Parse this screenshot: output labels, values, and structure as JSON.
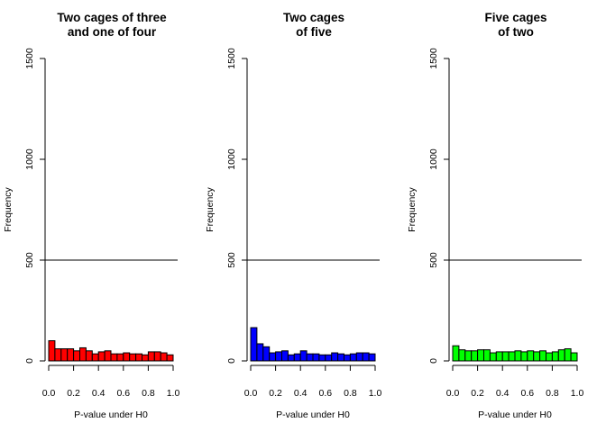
{
  "chart_data": [
    {
      "type": "bar",
      "title_lines": [
        "Two cages of three",
        "and one of four"
      ],
      "xlabel": "P-value under H0",
      "ylabel": "Frequency",
      "xlim": [
        0.0,
        1.0
      ],
      "ylim": [
        0,
        1500
      ],
      "x_ticks": [
        "0.0",
        "0.2",
        "0.4",
        "0.6",
        "0.8",
        "1.0"
      ],
      "y_ticks": [
        "0",
        "500",
        "1000",
        "1500"
      ],
      "bin_width": 0.05,
      "color": "#ff0000",
      "reference_line": 500,
      "values": [
        100,
        60,
        60,
        60,
        50,
        65,
        50,
        35,
        45,
        50,
        35,
        35,
        40,
        35,
        35,
        30,
        45,
        45,
        40,
        30
      ]
    },
    {
      "type": "bar",
      "title_lines": [
        "Two cages",
        "of five"
      ],
      "xlabel": "P-value under H0",
      "ylabel": "Frequency",
      "xlim": [
        0.0,
        1.0
      ],
      "ylim": [
        0,
        1500
      ],
      "x_ticks": [
        "0.0",
        "0.2",
        "0.4",
        "0.6",
        "0.8",
        "1.0"
      ],
      "y_ticks": [
        "0",
        "500",
        "1000",
        "1500"
      ],
      "bin_width": 0.05,
      "color": "#0000ff",
      "reference_line": 500,
      "values": [
        165,
        85,
        70,
        40,
        45,
        50,
        30,
        35,
        50,
        35,
        35,
        30,
        30,
        40,
        35,
        30,
        35,
        40,
        40,
        35
      ]
    },
    {
      "type": "bar",
      "title_lines": [
        "Five cages",
        "of two"
      ],
      "xlabel": "P-value under H0",
      "ylabel": "Frequency",
      "xlim": [
        0.0,
        1.0
      ],
      "ylim": [
        0,
        1500
      ],
      "x_ticks": [
        "0.0",
        "0.2",
        "0.4",
        "0.6",
        "0.8",
        "1.0"
      ],
      "y_ticks": [
        "0",
        "500",
        "1000",
        "1500"
      ],
      "bin_width": 0.05,
      "color": "#00ff00",
      "reference_line": 500,
      "values": [
        75,
        55,
        50,
        50,
        55,
        55,
        40,
        45,
        45,
        45,
        50,
        45,
        50,
        45,
        50,
        40,
        45,
        55,
        60,
        40
      ]
    }
  ]
}
